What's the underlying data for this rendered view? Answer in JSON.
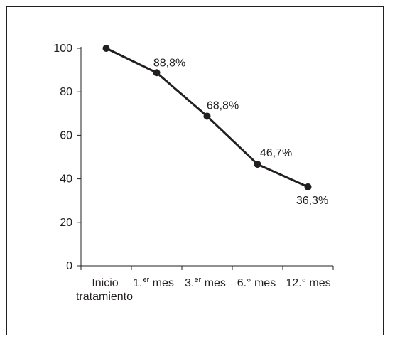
{
  "chart_data": {
    "type": "line",
    "categories": [
      "Inicio tratamiento",
      "1.er mes",
      "3.er mes",
      "6.° mes",
      "12.° mes"
    ],
    "category_labels": [
      {
        "lines": [
          "Inicio",
          "tratamiento"
        ]
      },
      {
        "main": "1.",
        "sup": "er",
        "rest": " mes"
      },
      {
        "main": "3.",
        "sup": "er",
        "rest": " mes"
      },
      {
        "main": "6.° mes"
      },
      {
        "main": "12.° mes"
      }
    ],
    "values": [
      100,
      88.8,
      68.8,
      46.7,
      36.3
    ],
    "data_labels": [
      "",
      "88,8%",
      "68,8%",
      "46,7%",
      "36,3%"
    ],
    "yticks": [
      0,
      20,
      40,
      60,
      80,
      100
    ],
    "ylim": [
      0,
      100
    ],
    "title": "",
    "xlabel": "",
    "ylabel": "",
    "grid": false,
    "colors": {
      "line": "#231f20",
      "axis": "#231f20"
    }
  }
}
